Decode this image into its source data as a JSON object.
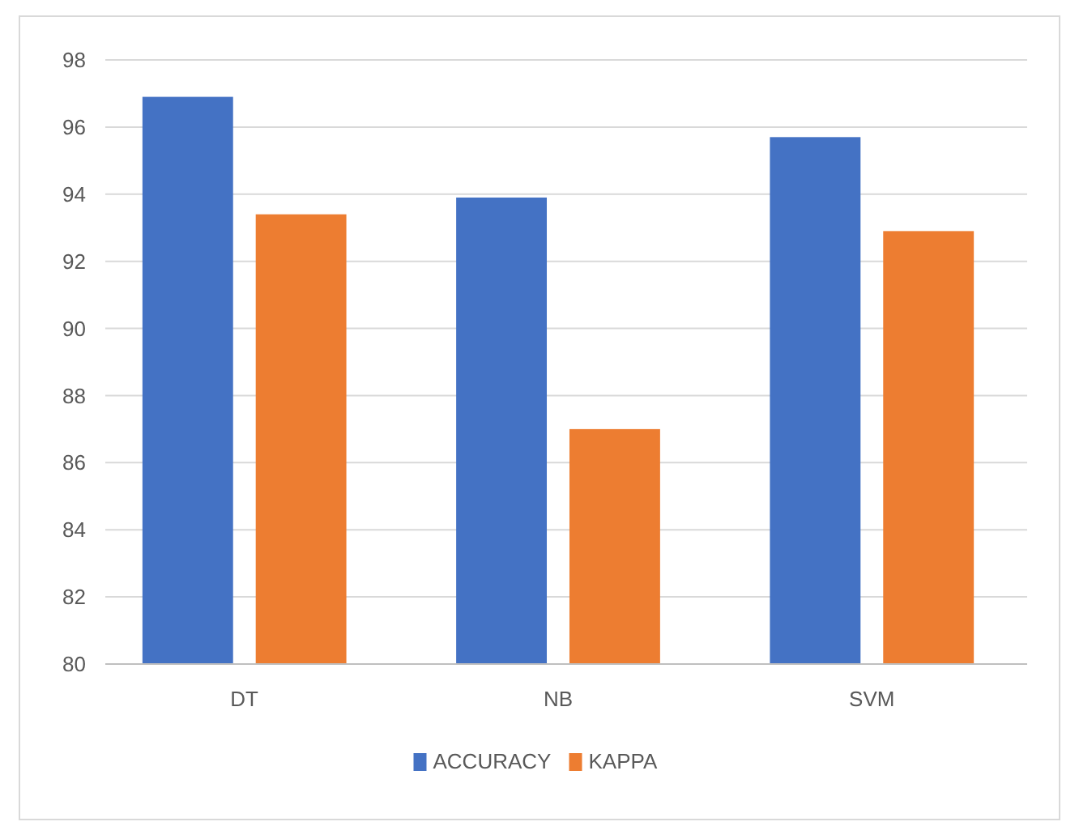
{
  "chart_data": {
    "type": "bar",
    "categories": [
      "DT",
      "NB",
      "SVM"
    ],
    "series": [
      {
        "name": "ACCURACY",
        "color": "#4472c4",
        "values": [
          96.9,
          93.9,
          95.7
        ]
      },
      {
        "name": "KAPPA",
        "color": "#ed7d31",
        "values": [
          93.4,
          87.0,
          92.9
        ]
      }
    ],
    "ylim": [
      80,
      98
    ],
    "yticks": [
      80,
      82,
      84,
      86,
      88,
      90,
      92,
      94,
      96,
      98
    ],
    "grid": "y",
    "legend": "bottom"
  }
}
